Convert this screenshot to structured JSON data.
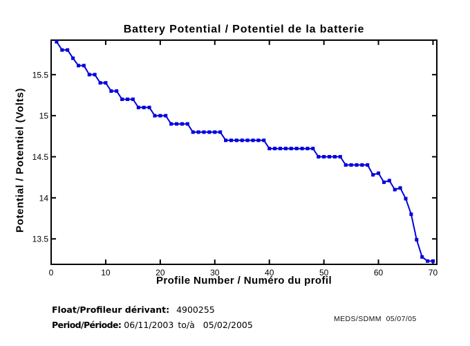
{
  "title": "Battery Potential / Potentiel de la batterie",
  "x_axis": {
    "label": "Profile Number / Numéro du profil",
    "ticks": [
      0,
      10,
      20,
      30,
      40,
      50,
      60,
      70
    ]
  },
  "y_axis": {
    "label": "Potential / Potentiel (Volts)",
    "ticks": [
      13.5,
      14,
      14.5,
      15,
      15.5
    ]
  },
  "footer": {
    "float_label": "Float/Profileur dérivant:",
    "float_value": "4900255",
    "period_label": "Period/Période:",
    "period_from": "06/11/2003",
    "period_sep": "to/à",
    "period_to": "05/02/2005",
    "org_date": "MEDS/SDMM  05/07/05"
  },
  "colors": {
    "line": "#0000DD",
    "axis": "#000000",
    "background": "#FFFFFF"
  },
  "chart_data": {
    "type": "line",
    "title": "Battery Potential / Potentiel de la batterie",
    "xlabel": "Profile Number / Numéro du profil",
    "ylabel": "Potential / Potentiel (Volts)",
    "x": [
      1,
      2,
      3,
      4,
      5,
      6,
      7,
      8,
      9,
      10,
      11,
      12,
      13,
      14,
      15,
      16,
      17,
      18,
      19,
      20,
      21,
      22,
      23,
      24,
      25,
      26,
      27,
      28,
      29,
      30,
      31,
      32,
      33,
      34,
      35,
      36,
      37,
      38,
      39,
      40,
      41,
      42,
      43,
      44,
      45,
      46,
      47,
      48,
      49,
      50,
      51,
      52,
      53,
      54,
      55,
      56,
      57,
      58,
      59,
      60,
      61,
      62,
      63,
      64,
      65,
      66,
      67,
      68,
      69,
      70
    ],
    "values": [
      15.9,
      15.8,
      15.8,
      15.7,
      15.61,
      15.61,
      15.5,
      15.5,
      15.4,
      15.4,
      15.3,
      15.3,
      15.2,
      15.2,
      15.2,
      15.1,
      15.1,
      15.1,
      15.0,
      15.0,
      15.0,
      14.9,
      14.9,
      14.9,
      14.9,
      14.8,
      14.8,
      14.8,
      14.8,
      14.8,
      14.8,
      14.7,
      14.7,
      14.7,
      14.7,
      14.7,
      14.7,
      14.7,
      14.7,
      14.6,
      14.6,
      14.6,
      14.6,
      14.6,
      14.6,
      14.6,
      14.6,
      14.6,
      14.5,
      14.5,
      14.5,
      14.5,
      14.5,
      14.4,
      14.4,
      14.4,
      14.4,
      14.4,
      14.28,
      14.3,
      14.19,
      14.21,
      14.1,
      14.12,
      13.99,
      13.8,
      13.49,
      13.28,
      13.23,
      13.23
    ],
    "xticks": [
      0,
      10,
      20,
      30,
      40,
      50,
      60,
      70
    ],
    "yticks": [
      13.5,
      14,
      14.5,
      15,
      15.5
    ],
    "xlim": [
      0,
      70.7
    ],
    "ylim": [
      13.19,
      15.92
    ],
    "grid": false,
    "legend": null,
    "marker": "square",
    "line_color": "#0000DD"
  }
}
